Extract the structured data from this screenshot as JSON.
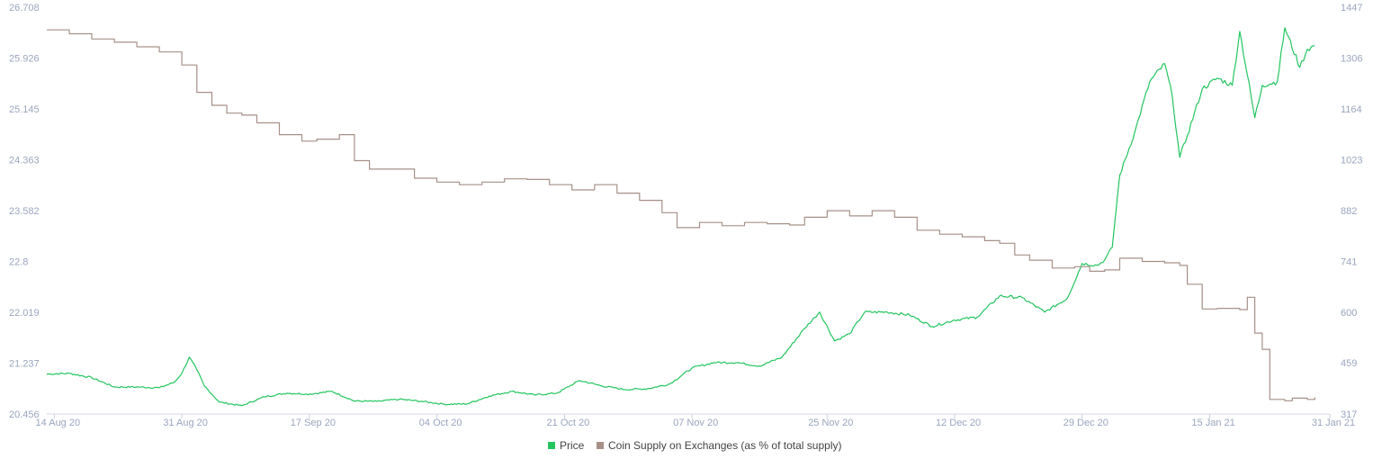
{
  "chart_data": {
    "type": "line",
    "title": "",
    "xlabel": "",
    "ylabel": "",
    "x_range": [
      "2020-08-13",
      "2021-01-31"
    ],
    "x_ticks": [
      {
        "date": "2020-08-14",
        "label": "14 Aug 20"
      },
      {
        "date": "2020-08-31",
        "label": "31 Aug 20"
      },
      {
        "date": "2020-09-17",
        "label": "17 Sep 20"
      },
      {
        "date": "2020-10-04",
        "label": "04 Oct 20"
      },
      {
        "date": "2020-10-21",
        "label": "21 Oct 20"
      },
      {
        "date": "2020-11-07",
        "label": "07 Nov 20"
      },
      {
        "date": "2020-11-25",
        "label": "25 Nov 20"
      },
      {
        "date": "2020-12-12",
        "label": "12 Dec 20"
      },
      {
        "date": "2020-12-29",
        "label": "29 Dec 20"
      },
      {
        "date": "2021-01-15",
        "label": "15 Jan 21"
      },
      {
        "date": "2021-01-31",
        "label": "31 Jan 21"
      }
    ],
    "y_left": {
      "min": 20.456,
      "max": 26.708,
      "ticks": [
        "26.708",
        "25.926",
        "25.145",
        "24.363",
        "23.582",
        "22.8",
        "22.019",
        "21.237",
        "20.456"
      ]
    },
    "y_right": {
      "min": 317,
      "max": 1447,
      "ticks": [
        "1447",
        "1306",
        "1164",
        "1023",
        "882",
        "741",
        "600",
        "459",
        "317"
      ]
    },
    "grid": false,
    "legend_position": "bottom-center",
    "series": [
      {
        "name": "Price",
        "axis": "right",
        "color": "#22c55e",
        "points": [
          [
            "2020-08-13",
            428
          ],
          [
            "2020-08-16",
            430
          ],
          [
            "2020-08-19",
            418
          ],
          [
            "2020-08-22",
            392
          ],
          [
            "2020-08-25",
            392
          ],
          [
            "2020-08-28",
            390
          ],
          [
            "2020-08-30",
            405
          ],
          [
            "2020-08-31",
            430
          ],
          [
            "2020-09-01",
            475
          ],
          [
            "2020-09-02",
            440
          ],
          [
            "2020-09-03",
            395
          ],
          [
            "2020-09-05",
            350
          ],
          [
            "2020-09-08",
            340
          ],
          [
            "2020-09-11",
            365
          ],
          [
            "2020-09-14",
            375
          ],
          [
            "2020-09-17",
            372
          ],
          [
            "2020-09-20",
            380
          ],
          [
            "2020-09-23",
            353
          ],
          [
            "2020-09-26",
            352
          ],
          [
            "2020-09-29",
            358
          ],
          [
            "2020-10-02",
            352
          ],
          [
            "2020-10-05",
            344
          ],
          [
            "2020-10-08",
            345
          ],
          [
            "2020-10-11",
            367
          ],
          [
            "2020-10-14",
            380
          ],
          [
            "2020-10-17",
            370
          ],
          [
            "2020-10-20",
            375
          ],
          [
            "2020-10-23",
            410
          ],
          [
            "2020-10-26",
            395
          ],
          [
            "2020-10-29",
            385
          ],
          [
            "2020-11-01",
            387
          ],
          [
            "2020-11-04",
            400
          ],
          [
            "2020-11-07",
            445
          ],
          [
            "2020-11-10",
            460
          ],
          [
            "2020-11-13",
            460
          ],
          [
            "2020-11-16",
            450
          ],
          [
            "2020-11-19",
            475
          ],
          [
            "2020-11-22",
            555
          ],
          [
            "2020-11-24",
            600
          ],
          [
            "2020-11-26",
            520
          ],
          [
            "2020-11-28",
            540
          ],
          [
            "2020-11-30",
            600
          ],
          [
            "2020-12-03",
            600
          ],
          [
            "2020-12-06",
            592
          ],
          [
            "2020-12-09",
            560
          ],
          [
            "2020-12-12",
            578
          ],
          [
            "2020-12-15",
            586
          ],
          [
            "2020-12-18",
            645
          ],
          [
            "2020-12-21",
            640
          ],
          [
            "2020-12-24",
            600
          ],
          [
            "2020-12-27",
            638
          ],
          [
            "2020-12-29",
            735
          ],
          [
            "2020-12-31",
            730
          ],
          [
            "2021-01-01",
            745
          ],
          [
            "2021-01-02",
            780
          ],
          [
            "2021-01-03",
            980
          ],
          [
            "2021-01-05",
            1100
          ],
          [
            "2021-01-07",
            1240
          ],
          [
            "2021-01-09",
            1290
          ],
          [
            "2021-01-10",
            1200
          ],
          [
            "2021-01-11",
            1030
          ],
          [
            "2021-01-12",
            1090
          ],
          [
            "2021-01-14",
            1220
          ],
          [
            "2021-01-16",
            1250
          ],
          [
            "2021-01-18",
            1230
          ],
          [
            "2021-01-19",
            1380
          ],
          [
            "2021-01-21",
            1140
          ],
          [
            "2021-01-22",
            1230
          ],
          [
            "2021-01-24",
            1240
          ],
          [
            "2021-01-25",
            1390
          ],
          [
            "2021-01-27",
            1280
          ],
          [
            "2021-01-28",
            1330
          ],
          [
            "2021-01-29",
            1340
          ]
        ]
      },
      {
        "name": "Coin Supply on Exchanges (as % of total supply)",
        "axis": "left",
        "color": "#a69088",
        "points": [
          [
            "2020-08-13",
            26.36
          ],
          [
            "2020-08-16",
            26.3
          ],
          [
            "2020-08-19",
            26.22
          ],
          [
            "2020-08-22",
            26.17
          ],
          [
            "2020-08-25",
            26.1
          ],
          [
            "2020-08-28",
            26.02
          ],
          [
            "2020-08-31",
            25.82
          ],
          [
            "2020-09-02",
            25.4
          ],
          [
            "2020-09-04",
            25.2
          ],
          [
            "2020-09-06",
            25.08
          ],
          [
            "2020-09-08",
            25.05
          ],
          [
            "2020-09-10",
            24.93
          ],
          [
            "2020-09-13",
            24.75
          ],
          [
            "2020-09-16",
            24.65
          ],
          [
            "2020-09-18",
            24.68
          ],
          [
            "2020-09-21",
            24.75
          ],
          [
            "2020-09-23",
            24.35
          ],
          [
            "2020-09-25",
            24.22
          ],
          [
            "2020-09-28",
            24.22
          ],
          [
            "2020-10-01",
            24.08
          ],
          [
            "2020-10-04",
            24.02
          ],
          [
            "2020-10-07",
            23.98
          ],
          [
            "2020-10-10",
            24.02
          ],
          [
            "2020-10-13",
            24.07
          ],
          [
            "2020-10-16",
            24.06
          ],
          [
            "2020-10-19",
            23.98
          ],
          [
            "2020-10-22",
            23.9
          ],
          [
            "2020-10-25",
            23.98
          ],
          [
            "2020-10-28",
            23.85
          ],
          [
            "2020-10-31",
            23.74
          ],
          [
            "2020-11-03",
            23.55
          ],
          [
            "2020-11-05",
            23.32
          ],
          [
            "2020-11-08",
            23.4
          ],
          [
            "2020-11-11",
            23.35
          ],
          [
            "2020-11-14",
            23.4
          ],
          [
            "2020-11-17",
            23.38
          ],
          [
            "2020-11-20",
            23.36
          ],
          [
            "2020-11-22",
            23.48
          ],
          [
            "2020-11-25",
            23.58
          ],
          [
            "2020-11-28",
            23.5
          ],
          [
            "2020-12-01",
            23.58
          ],
          [
            "2020-12-04",
            23.48
          ],
          [
            "2020-12-07",
            23.28
          ],
          [
            "2020-12-10",
            23.22
          ],
          [
            "2020-12-13",
            23.18
          ],
          [
            "2020-12-16",
            23.12
          ],
          [
            "2020-12-18",
            23.08
          ],
          [
            "2020-12-20",
            22.9
          ],
          [
            "2020-12-22",
            22.82
          ],
          [
            "2020-12-25",
            22.7
          ],
          [
            "2020-12-28",
            22.72
          ],
          [
            "2020-12-30",
            22.65
          ],
          [
            "2021-01-01",
            22.67
          ],
          [
            "2021-01-03",
            22.85
          ],
          [
            "2021-01-06",
            22.8
          ],
          [
            "2021-01-09",
            22.78
          ],
          [
            "2021-01-11",
            22.74
          ],
          [
            "2021-01-12",
            22.45
          ],
          [
            "2021-01-14",
            22.07
          ],
          [
            "2021-01-16",
            22.08
          ],
          [
            "2021-01-19",
            22.06
          ],
          [
            "2021-01-20",
            22.25
          ],
          [
            "2021-01-21",
            21.7
          ],
          [
            "2021-01-22",
            21.45
          ],
          [
            "2021-01-23",
            20.68
          ],
          [
            "2021-01-25",
            20.66
          ],
          [
            "2021-01-26",
            20.7
          ],
          [
            "2021-01-28",
            20.68
          ],
          [
            "2021-01-29",
            20.71
          ]
        ]
      }
    ]
  }
}
